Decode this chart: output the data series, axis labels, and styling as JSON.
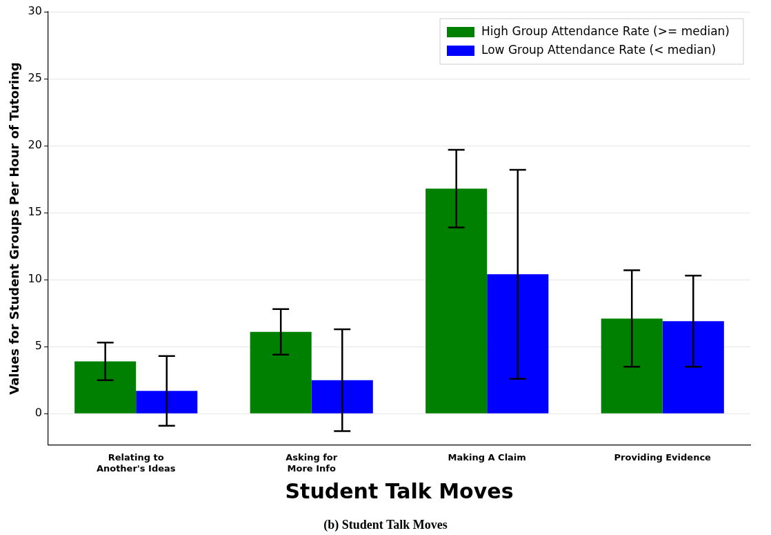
{
  "chart_data": {
    "type": "bar",
    "categories": [
      "Relating to\nAnother's Ideas",
      "Asking for\nMore Info",
      "Making A Claim",
      "Providing Evidence"
    ],
    "series": [
      {
        "name": "High Group Attendance Rate (>= median)",
        "color": "#008000",
        "values": [
          3.9,
          6.1,
          16.8,
          7.1
        ],
        "errors": [
          1.4,
          1.7,
          2.9,
          3.6
        ]
      },
      {
        "name": "Low Group Attendance Rate (< median)",
        "color": "#0000ff",
        "values": [
          1.7,
          2.5,
          10.4,
          6.9
        ],
        "errors": [
          2.6,
          3.8,
          7.8,
          3.4
        ]
      }
    ],
    "xlabel": "Student Talk Moves",
    "ylabel": "Values for Student Groups Per Hour of Tutoring",
    "ylim": [
      -2.35,
      30
    ],
    "yticks": [
      0,
      5,
      10,
      15,
      20,
      25,
      30
    ],
    "grid": "y",
    "legend": "top right",
    "annotations": [
      "(b) Student Talk Moves"
    ]
  }
}
